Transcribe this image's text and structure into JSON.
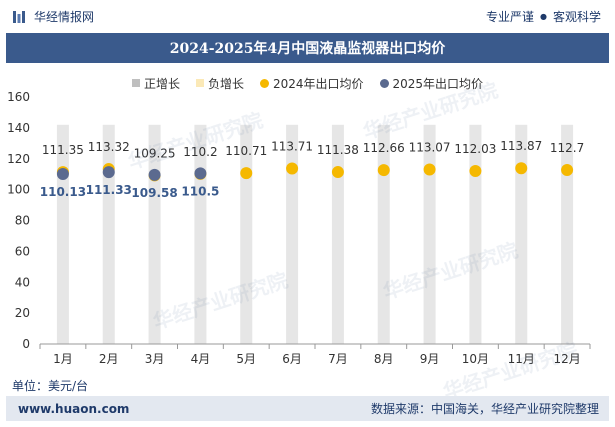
{
  "header": {
    "brand": "华经情报网",
    "tags": [
      "专业严谨",
      "客观科学"
    ]
  },
  "watermark": "华经产业研究院",
  "unit_label": "单位：美元/台",
  "footer": {
    "website": "www.huaon.com",
    "source": "数据来源：中国海关，华经产业研究院整理"
  },
  "colors": {
    "title_bg": "#3a5a8c",
    "bar_bg": "#e6e6e6",
    "pos": "#bfbfbf",
    "neg": "#fbe9b7",
    "series2024": "#f5b800",
    "series2025": "#5b6a8f"
  },
  "chart_data": {
    "type": "scatter",
    "title": "2024-2025年4月中国液晶监视器出口均价",
    "legend": [
      "正增长",
      "负增长",
      "2024年出口均价",
      "2025年出口均价"
    ],
    "categories": [
      "1月",
      "2月",
      "3月",
      "4月",
      "5月",
      "6月",
      "7月",
      "8月",
      "9月",
      "10月",
      "11月",
      "12月"
    ],
    "ylim": [
      0,
      160
    ],
    "yticks": [
      0,
      20,
      40,
      60,
      80,
      100,
      120,
      140,
      160
    ],
    "background_bar_value": 142,
    "series": [
      {
        "name": "2024年出口均价",
        "values": [
          111.35,
          113.32,
          109.25,
          110.2,
          110.71,
          113.71,
          111.38,
          112.66,
          113.07,
          112.03,
          113.87,
          112.7
        ],
        "labels": [
          "111.35",
          "113.32",
          "109.25",
          "110.2",
          "110.71",
          "113.71",
          "111.38",
          "112.66",
          "113.07",
          "112.03",
          "113.87",
          "112.7"
        ]
      },
      {
        "name": "2025年出口均价",
        "values": [
          110.13,
          111.33,
          109.58,
          110.5
        ],
        "labels": [
          "110.13",
          "111.33",
          "109.58",
          "110.5"
        ]
      }
    ]
  }
}
